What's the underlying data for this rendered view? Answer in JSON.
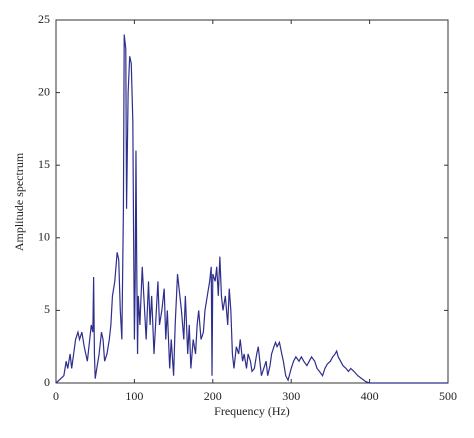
{
  "chart_data": {
    "type": "line",
    "x_label": "Frequency (Hz)",
    "y_label": "Amplitude spectrum",
    "color": "#2e2e8c",
    "x": [
      0,
      10,
      13,
      15,
      18,
      20,
      25,
      28,
      30,
      33,
      36,
      40,
      43,
      45,
      47,
      48,
      49,
      50,
      52,
      55,
      58,
      60,
      62,
      65,
      68,
      70,
      72,
      75,
      78,
      80,
      82,
      84,
      86,
      87,
      89,
      90,
      92,
      94,
      96,
      98,
      99,
      100,
      101,
      102,
      103,
      104,
      105,
      107,
      110,
      112,
      115,
      118,
      120,
      122,
      125,
      128,
      130,
      132,
      135,
      138,
      140,
      142,
      145,
      147,
      150,
      152,
      155,
      158,
      160,
      163,
      165,
      168,
      170,
      172,
      175,
      178,
      180,
      182,
      185,
      188,
      190,
      193,
      196,
      198,
      199,
      200,
      203,
      205,
      207,
      209,
      211,
      213,
      216,
      219,
      221,
      223,
      225,
      227,
      230,
      233,
      235,
      238,
      240,
      243,
      245,
      248,
      250,
      253,
      256,
      258,
      260,
      262,
      265,
      268,
      270,
      273,
      275,
      278,
      280,
      282,
      285,
      288,
      290,
      293,
      296,
      300,
      303,
      306,
      310,
      313,
      316,
      320,
      323,
      326,
      330,
      333,
      336,
      340,
      343,
      346,
      350,
      353,
      356,
      358,
      360,
      363,
      366,
      370,
      373,
      376,
      380,
      385,
      390,
      395,
      400,
      500
    ],
    "values": [
      0,
      0.5,
      1.5,
      1,
      2,
      1,
      3,
      3.5,
      3,
      3.5,
      2.5,
      1.5,
      3,
      4,
      3.5,
      7.3,
      2,
      0.3,
      1,
      2,
      3.5,
      3,
      1.5,
      2,
      3,
      4,
      6,
      7,
      9,
      8.5,
      5,
      3,
      12,
      24,
      23,
      12,
      20,
      22.5,
      22,
      18,
      10,
      3,
      7,
      16,
      8,
      2,
      6,
      4,
      8,
      6,
      3,
      7,
      4,
      6,
      2,
      5,
      7,
      4,
      5,
      6.5,
      3,
      5,
      1,
      3,
      0.5,
      4,
      7.5,
      6,
      5,
      3,
      6,
      2,
      4,
      1,
      3,
      2,
      4,
      5,
      3,
      3.5,
      5,
      6,
      7,
      8,
      0.5,
      7.5,
      7,
      8,
      6,
      8.7,
      6,
      5,
      6,
      4,
      6.5,
      5,
      2,
      1,
      2.5,
      2,
      3,
      1.5,
      2,
      1,
      2,
      1.5,
      0.8,
      1,
      2,
      2.5,
      1.5,
      0.5,
      1,
      1.5,
      0.5,
      1.2,
      2,
      2.5,
      2.8,
      2.5,
      2.8,
      2,
      1.5,
      0.5,
      0.2,
      1,
      1.5,
      1.8,
      1.5,
      1.8,
      1.5,
      1.2,
      1.5,
      1.8,
      1.5,
      1,
      0.8,
      0.5,
      1,
      1.3,
      1.5,
      1.8,
      2,
      2.2,
      1.8,
      1.5,
      1.2,
      1,
      0.8,
      1,
      0.8,
      0.5,
      0.3,
      0.1,
      0,
      0
    ],
    "xlim": [
      0,
      500
    ],
    "xticks": [
      0,
      100,
      200,
      300,
      400,
      500
    ],
    "ylim": [
      0,
      25
    ],
    "yticks": [
      0,
      5,
      10,
      15,
      20,
      25
    ]
  }
}
